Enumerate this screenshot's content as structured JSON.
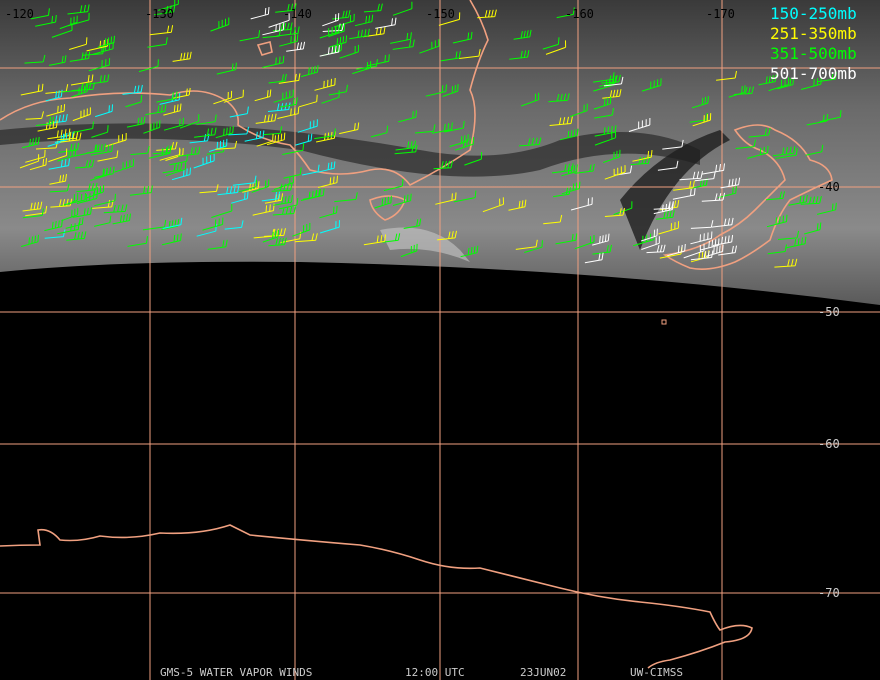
{
  "map": {
    "lon_labels": [
      "-120",
      "-130",
      "-140",
      "-150",
      "-160",
      "-170"
    ],
    "lat_labels": [
      "-40",
      "-50",
      "-60",
      "-70"
    ],
    "legend": [
      "150-250mb",
      "251-350mb",
      "351-500mb",
      "501-700mb"
    ],
    "footer": [
      "GMS-5 WATER VAPOR WINDS",
      "12:00 UTC",
      "23JUN02",
      "UW-CIMSS"
    ]
  }
}
